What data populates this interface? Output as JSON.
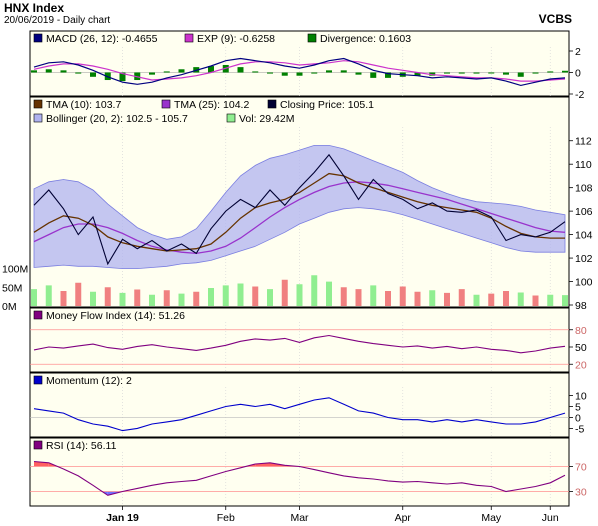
{
  "header": {
    "title": "HNX Index",
    "subtitle": "20/06/2019 - Daily chart",
    "symbol": "VCBS"
  },
  "colors": {
    "background": "#ffffff",
    "plot_bg": "#fffff0",
    "macd": "#000080",
    "exp": "#cc33cc",
    "divergence": "#008000",
    "tma10": "#663300",
    "tma25": "#9933cc",
    "close": "#000033",
    "bollinger_fill": "#b0b3f0",
    "bollinger_edge": "#7a7ee0",
    "vol_up": "#90ee90",
    "vol_down": "#f08080",
    "mfi": "#800080",
    "momentum": "#0000cc",
    "rsi": "#800080",
    "rsi_over": "#ff6060",
    "rsi_under": "#7070ff",
    "ref_line": "#ff9090"
  },
  "chart_data": [
    {
      "type": "line",
      "panel": "macd",
      "legend": [
        {
          "label": "MACD (26, 12): -0.4655",
          "color": "#000080"
        },
        {
          "label": "EXP (9): -0.6258",
          "color": "#cc33cc"
        },
        {
          "label": "Divergence: 0.1603",
          "color": "#008000"
        }
      ],
      "ylim": [
        -2,
        2
      ],
      "yticks": [
        "2",
        "0",
        "-2"
      ],
      "series": [
        {
          "name": "MACD (26, 12)",
          "values": [
            0.5,
            0.9,
            1.0,
            0.7,
            0.2,
            -0.4,
            -0.9,
            -1.1,
            -0.9,
            -0.5,
            -0.2,
            0.2,
            0.6,
            1.1,
            1.3,
            1.1,
            0.9,
            0.6,
            0.4,
            0.7,
            1.1,
            1.3,
            0.8,
            0.2,
            -0.1,
            -0.2,
            -0.3,
            -0.5,
            -0.4,
            -0.5,
            -0.6,
            -0.5,
            -0.8,
            -1.2,
            -0.9,
            -0.6,
            -0.5
          ]
        },
        {
          "name": "EXP (9)",
          "values": [
            0.3,
            0.6,
            0.8,
            0.8,
            0.6,
            0.3,
            -0.1,
            -0.4,
            -0.7,
            -0.6,
            -0.5,
            -0.3,
            0.0,
            0.4,
            0.8,
            1.0,
            1.0,
            0.9,
            0.7,
            0.8,
            0.9,
            1.1,
            1.0,
            0.7,
            0.4,
            0.2,
            0.0,
            -0.2,
            -0.3,
            -0.4,
            -0.5,
            -0.5,
            -0.6,
            -0.8,
            -0.8,
            -0.7,
            -0.6
          ]
        },
        {
          "name": "Divergence",
          "values": [
            0.2,
            0.3,
            0.2,
            -0.1,
            -0.4,
            -0.7,
            -0.8,
            -0.7,
            -0.2,
            0.1,
            0.3,
            0.5,
            0.6,
            0.7,
            0.5,
            0.1,
            -0.1,
            -0.3,
            -0.3,
            -0.1,
            0.2,
            0.2,
            -0.2,
            -0.5,
            -0.5,
            -0.4,
            -0.3,
            -0.3,
            -0.1,
            -0.1,
            -0.1,
            0.0,
            -0.2,
            -0.4,
            -0.1,
            0.1,
            0.16
          ]
        }
      ]
    },
    {
      "type": "line",
      "panel": "price",
      "legend": [
        {
          "label": "TMA (10): 103.7",
          "color": "#663300"
        },
        {
          "label": "TMA (25): 104.2",
          "color": "#9933cc"
        },
        {
          "label": "Closing Price: 105.1",
          "color": "#000033"
        },
        {
          "label": "Bollinger (20, 2): 102.5 - 105.7",
          "color": "#b0b3f0"
        },
        {
          "label": "Vol: 29.42M",
          "color": "#90ee90"
        }
      ],
      "ylim": [
        98,
        113
      ],
      "yticks": [
        "112",
        "110",
        "108",
        "106",
        "104",
        "102",
        "100",
        "98"
      ],
      "volume_ticks": [
        "100M",
        "50M",
        "0M"
      ],
      "series": [
        {
          "name": "Closing Price",
          "values": [
            106.5,
            107.8,
            106.2,
            104.0,
            105.5,
            101.5,
            103.6,
            102.8,
            103.5,
            102.6,
            103.2,
            102.4,
            104.5,
            106.0,
            107.0,
            106.3,
            107.8,
            106.5,
            108.0,
            109.3,
            110.8,
            109.0,
            107.0,
            108.7,
            107.5,
            107.0,
            106.2,
            106.7,
            106.0,
            105.9,
            106.1,
            105.5,
            103.5,
            104.0,
            103.8,
            104.2,
            105.1
          ]
        },
        {
          "name": "TMA (10)",
          "values": [
            104.2,
            105.0,
            105.6,
            105.4,
            104.8,
            103.8,
            103.3,
            103.0,
            102.8,
            102.6,
            102.7,
            102.8,
            103.2,
            104.2,
            105.4,
            106.3,
            106.7,
            107.0,
            107.6,
            108.4,
            109.2,
            109.0,
            108.4,
            108.0,
            107.6,
            107.2,
            106.8,
            106.5,
            106.3,
            106.1,
            105.9,
            105.4,
            104.7,
            104.1,
            103.8,
            103.7,
            103.7
          ]
        },
        {
          "name": "TMA (25)",
          "values": [
            103.4,
            104.0,
            104.6,
            104.9,
            104.9,
            104.6,
            104.1,
            103.5,
            103.0,
            102.7,
            102.5,
            102.4,
            102.6,
            103.0,
            103.7,
            104.6,
            105.5,
            106.3,
            107.0,
            107.6,
            108.1,
            108.4,
            108.5,
            108.4,
            108.2,
            107.9,
            107.6,
            107.3,
            107.0,
            106.6,
            106.2,
            105.8,
            105.4,
            105.0,
            104.6,
            104.3,
            104.2
          ]
        },
        {
          "name": "Bollinger upper",
          "values": [
            107.9,
            108.5,
            108.7,
            108.5,
            107.8,
            106.6,
            105.6,
            104.6,
            104.0,
            103.6,
            103.8,
            104.5,
            106.0,
            107.6,
            109.0,
            109.9,
            110.5,
            110.8,
            111.2,
            111.6,
            111.6,
            111.3,
            110.8,
            110.3,
            109.8,
            109.3,
            108.6,
            108.0,
            107.5,
            107.1,
            106.8,
            106.7,
            106.6,
            106.4,
            106.1,
            105.9,
            105.7
          ]
        },
        {
          "name": "Bollinger lower",
          "values": [
            101.2,
            101.3,
            101.4,
            101.3,
            101.3,
            101.2,
            101.1,
            101.1,
            101.2,
            101.3,
            101.5,
            101.6,
            101.8,
            102.2,
            102.6,
            103.0,
            103.6,
            104.2,
            104.9,
            105.4,
            105.9,
            106.2,
            106.3,
            106.2,
            106.0,
            105.7,
            105.3,
            104.9,
            104.5,
            104.1,
            103.7,
            103.3,
            102.9,
            102.6,
            102.5,
            102.5,
            102.5
          ]
        },
        {
          "name": "Vol",
          "values": [
            45,
            55,
            40,
            62,
            38,
            50,
            35,
            44,
            30,
            42,
            33,
            38,
            48,
            55,
            60,
            52,
            45,
            70,
            58,
            82,
            65,
            50,
            45,
            55,
            40,
            52,
            38,
            42,
            35,
            45,
            30,
            33,
            40,
            36,
            28,
            30,
            29
          ]
        }
      ]
    },
    {
      "type": "line",
      "panel": "mfi",
      "legend": [
        {
          "label": "Money Flow Index (14): 51.26",
          "color": "#800080"
        }
      ],
      "ylim": [
        10,
        90
      ],
      "yticks": [
        "80",
        "50",
        "20"
      ],
      "series": [
        {
          "name": "Money Flow Index (14)",
          "values": [
            45,
            50,
            48,
            52,
            55,
            49,
            46,
            51,
            54,
            50,
            47,
            44,
            48,
            53,
            60,
            64,
            62,
            65,
            58,
            66,
            70,
            65,
            60,
            56,
            53,
            50,
            52,
            48,
            51,
            47,
            50,
            46,
            44,
            40,
            43,
            48,
            51.26
          ]
        }
      ]
    },
    {
      "type": "line",
      "panel": "momentum",
      "legend": [
        {
          "label": "Momentum (12): 2",
          "color": "#0000cc"
        }
      ],
      "ylim": [
        -8,
        13
      ],
      "yticks": [
        "10",
        "5",
        "0",
        "-5"
      ],
      "series": [
        {
          "name": "Momentum (12)",
          "values": [
            4,
            3,
            2,
            -1,
            -3,
            -4,
            -6,
            -5,
            -3,
            -2,
            -1,
            1,
            3,
            5,
            6,
            5,
            6,
            4,
            6,
            8,
            9,
            6,
            3,
            2,
            0,
            -1,
            -1,
            -2,
            -1,
            -2,
            -1,
            -2,
            -3,
            -3,
            -2,
            0,
            2
          ]
        }
      ]
    },
    {
      "type": "line",
      "panel": "rsi",
      "legend": [
        {
          "label": "RSI (14): 56.11",
          "color": "#800080"
        }
      ],
      "ylim": [
        10,
        90
      ],
      "yticks": [
        "70",
        "30"
      ],
      "series": [
        {
          "name": "RSI (14)",
          "values": [
            78,
            76,
            66,
            55,
            40,
            24,
            30,
            35,
            40,
            44,
            46,
            48,
            55,
            62,
            68,
            74,
            76,
            72,
            70,
            65,
            60,
            55,
            52,
            50,
            47,
            45,
            46,
            44,
            42,
            44,
            40,
            38,
            30,
            34,
            38,
            44,
            56.11
          ]
        }
      ]
    }
  ],
  "x_axis": {
    "labels": [
      {
        "text": "Jan 19",
        "at": 6,
        "bold": true
      },
      {
        "text": "Feb",
        "at": 13
      },
      {
        "text": "Mar",
        "at": 18
      },
      {
        "text": "Apr",
        "at": 25
      },
      {
        "text": "May",
        "at": 31
      },
      {
        "text": "Jun",
        "at": 35
      }
    ]
  }
}
